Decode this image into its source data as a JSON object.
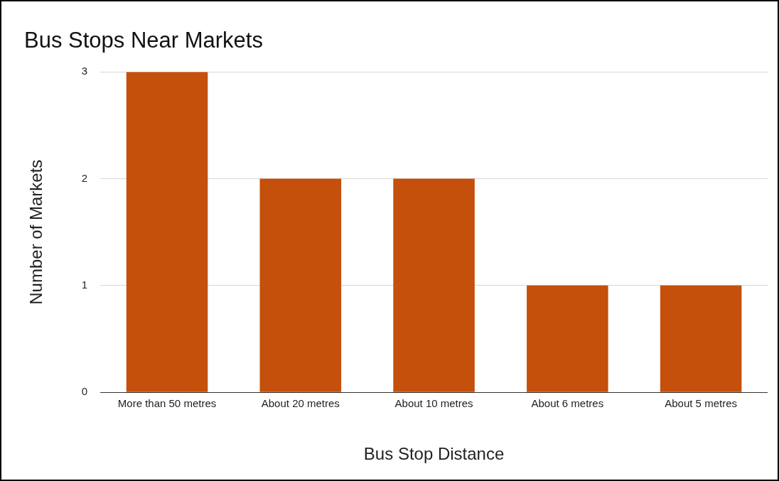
{
  "chart_data": {
    "type": "bar",
    "title": "Bus Stops Near Markets",
    "xlabel": "Bus Stop Distance",
    "ylabel": "Number of Markets",
    "categories": [
      "More than 50 metres",
      "About 20 metres",
      "About 10 metres",
      "About 6 metres",
      "About 5 metres"
    ],
    "values": [
      3,
      2,
      2,
      1,
      1
    ],
    "color": "#c5500b",
    "ylim": [
      0,
      3
    ],
    "yticks": [
      0,
      1,
      2,
      3
    ],
    "grid": "y"
  }
}
